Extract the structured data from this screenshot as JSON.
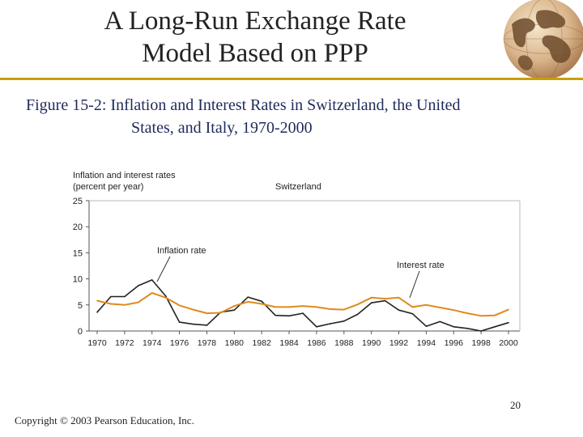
{
  "slide": {
    "title_line1": "A Long-Run Exchange Rate",
    "title_line2": "Model Based on PPP",
    "figure_label": "Figure 15-2",
    "figure_caption_line1": ": Inflation and Interest Rates in Switzerland, the United",
    "figure_caption_line2": "States, and Italy, 1970-2000",
    "page_number": "20",
    "copyright": "Copyright © 2003 Pearson Education, Inc."
  },
  "colors": {
    "title_rule": "#c8a000",
    "inflation_line": "#222222",
    "interest_line": "#e08a1e",
    "axis": "#555555"
  },
  "chart_data": {
    "type": "line",
    "title": "Switzerland",
    "ylabel_line1": "Inflation and interest rates",
    "ylabel_line2": "(percent per year)",
    "xlabel": "",
    "ylim": [
      0,
      25
    ],
    "yticks": [
      0,
      5,
      10,
      15,
      20,
      25
    ],
    "xlim": [
      1970,
      2000
    ],
    "xticks": [
      1970,
      1972,
      1974,
      1976,
      1978,
      1980,
      1982,
      1984,
      1986,
      1988,
      1990,
      1992,
      1994,
      1996,
      1998,
      2000
    ],
    "grid": false,
    "series": [
      {
        "name": "Inflation rate",
        "annotation": "Inflation rate",
        "x": [
          1970,
          1971,
          1972,
          1973,
          1974,
          1975,
          1976,
          1977,
          1978,
          1979,
          1980,
          1981,
          1982,
          1983,
          1984,
          1985,
          1986,
          1987,
          1988,
          1989,
          1990,
          1991,
          1992,
          1993,
          1994,
          1995,
          1996,
          1997,
          1998,
          1999,
          2000
        ],
        "values": [
          3.6,
          6.6,
          6.6,
          8.7,
          9.8,
          6.7,
          1.7,
          1.3,
          1.1,
          3.6,
          4.0,
          6.5,
          5.7,
          3.0,
          2.9,
          3.4,
          0.8,
          1.4,
          1.9,
          3.2,
          5.4,
          5.8,
          4.0,
          3.3,
          0.9,
          1.8,
          0.8,
          0.5,
          0.0,
          0.8,
          1.6
        ]
      },
      {
        "name": "Interest rate",
        "annotation": "Interest rate",
        "x": [
          1970,
          1971,
          1972,
          1973,
          1974,
          1975,
          1976,
          1977,
          1978,
          1979,
          1980,
          1981,
          1982,
          1983,
          1984,
          1985,
          1986,
          1987,
          1988,
          1989,
          1990,
          1991,
          1992,
          1993,
          1994,
          1995,
          1996,
          1997,
          1998,
          1999,
          2000
        ],
        "values": [
          5.8,
          5.2,
          5.0,
          5.5,
          7.3,
          6.4,
          4.9,
          4.1,
          3.4,
          3.5,
          4.8,
          5.6,
          5.2,
          4.6,
          4.6,
          4.8,
          4.6,
          4.2,
          4.1,
          5.1,
          6.4,
          6.2,
          6.4,
          4.6,
          5.0,
          4.5,
          4.0,
          3.4,
          2.9,
          3.0,
          4.1
        ]
      }
    ]
  }
}
